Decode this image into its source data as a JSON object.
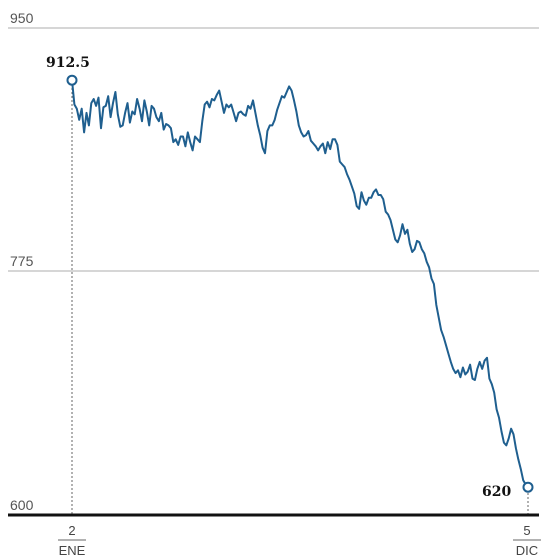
{
  "chart_data": {
    "type": "line",
    "title": "",
    "xlabel": "",
    "ylabel": "",
    "ylim": [
      600,
      950
    ],
    "yticks": [
      "950",
      "775",
      "600"
    ],
    "grid": true,
    "x_start_label": {
      "day": "2",
      "month": "ENE"
    },
    "x_end_label": {
      "day": "5",
      "month": "DIC"
    },
    "annotations": {
      "start": "912.5",
      "end": "620"
    },
    "colors": {
      "line": "#1f5f8f",
      "grid": "#c8c8c8",
      "baseline": "#111111",
      "marker_fill": "#ffffff"
    },
    "series": [
      {
        "values": [
          912.5,
          895,
          892,
          884,
          892,
          875,
          889,
          880,
          896,
          899,
          894,
          900,
          878,
          893,
          894,
          901,
          886,
          896,
          904,
          888,
          879,
          880,
          889,
          896,
          882,
          890,
          888,
          899,
          892,
          883,
          898,
          890,
          880,
          894,
          892,
          886,
          883,
          889,
          877,
          881,
          880,
          878,
          868,
          870,
          866,
          872,
          872,
          865,
          875,
          868,
          862,
          872,
          870,
          868,
          883,
          895,
          897,
          893,
          899,
          898,
          902,
          905,
          897,
          889,
          895,
          893,
          895,
          889,
          883,
          889,
          890,
          888,
          887,
          894,
          892,
          898,
          889,
          880,
          873,
          864,
          860,
          876,
          880,
          880,
          884,
          891,
          896,
          901,
          900,
          904,
          908,
          905,
          898,
          890,
          880,
          875,
          872,
          873,
          876,
          869,
          867,
          865,
          862,
          865,
          867,
          860,
          868,
          863,
          870,
          870,
          866,
          854,
          852,
          850,
          845,
          841,
          836,
          831,
          822,
          820,
          832,
          826,
          823,
          828,
          828,
          832,
          834,
          830,
          830,
          827,
          818,
          816,
          812,
          805,
          798,
          796,
          801,
          809,
          802,
          805,
          795,
          789,
          791,
          797,
          796,
          791,
          788,
          782,
          778,
          770,
          766,
          751,
          742,
          733,
          728,
          722,
          716,
          710,
          705,
          702,
          704,
          699,
          706,
          701,
          703,
          708,
          698,
          697,
          705,
          710,
          705,
          711,
          713,
          698,
          694,
          688,
          676,
          670,
          660,
          652,
          650,
          655,
          662,
          658,
          648,
          640,
          633,
          625,
          622,
          620
        ]
      }
    ]
  }
}
